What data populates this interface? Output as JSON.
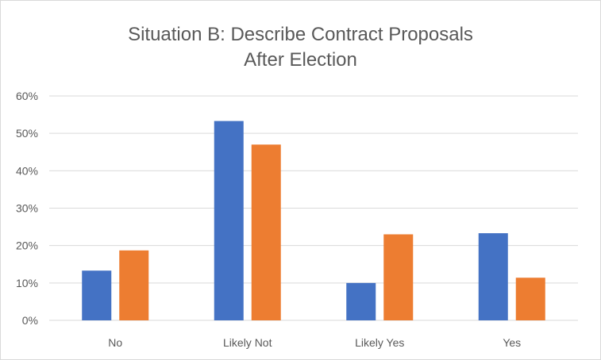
{
  "chart_data": {
    "type": "bar",
    "title_line1": "Situation B: Describe Contract Proposals",
    "title_line2": "After Election",
    "categories": [
      "No",
      "Likely Not",
      "Likely Yes",
      "Yes"
    ],
    "series": [
      {
        "values": [
          13.3,
          53.3,
          10.0,
          23.3
        ],
        "color": "#4472c4"
      },
      {
        "values": [
          18.7,
          47.0,
          23.0,
          11.4
        ],
        "color": "#ed7d31"
      }
    ],
    "ylim": [
      0,
      60
    ],
    "yticks": [
      "0%",
      "10%",
      "20%",
      "30%",
      "40%",
      "50%",
      "60%"
    ],
    "grid": true,
    "legend": "none"
  }
}
